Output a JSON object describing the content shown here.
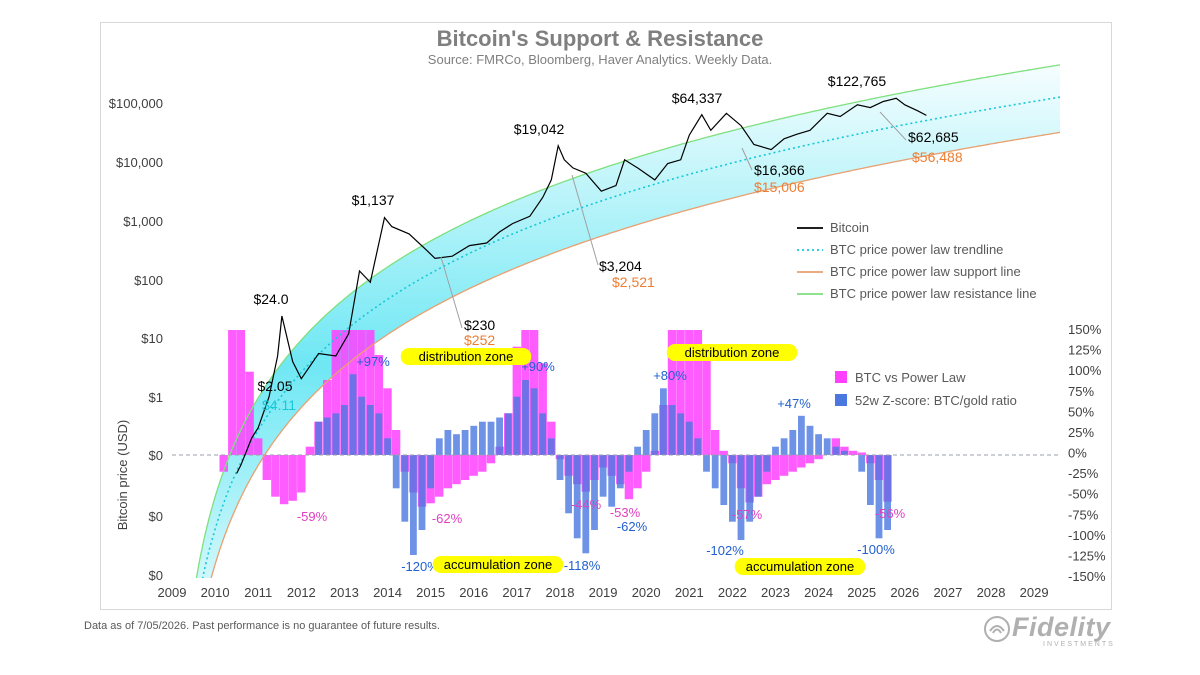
{
  "page": {
    "title": "Bitcoin's Support & Resistance",
    "subtitle": "Source: FMRCo, Bloomberg, Haver Analytics. Weekly Data.",
    "footnote": "Data as of 7/05/2026. Past performance is no guarantee of future results.",
    "logo_text": "Fidelity",
    "logo_subtext": "INVESTMENTS"
  },
  "colors": {
    "bitcoin": "#000000",
    "trendline": "#17c8d8",
    "support": "#e8a070",
    "resistance": "#7ee07e",
    "band": "#3fe0f0",
    "btc_vs_power_law": "#ff40ff",
    "zscore": "#4a78e0",
    "price_label": "#000000",
    "support_label": "#ed7d31",
    "pct_pink": "#e040c0",
    "pct_blue": "#2060d0",
    "zone_highlight": "#ffff00"
  },
  "chart_data": {
    "type": "line",
    "ylabel_left": "Bitcoin price (USD)",
    "y_scale_left": "log",
    "y_ticks_left": [
      "$0",
      "$0",
      "$0",
      "$1",
      "$10",
      "$100",
      "$1,000",
      "$10,000",
      "$100,000"
    ],
    "y_ticks_right": [
      "150%",
      "125%",
      "100%",
      "75%",
      "50%",
      "25%",
      "0%",
      "-25%",
      "-50%",
      "-75%",
      "-100%",
      "-125%",
      "-150%"
    ],
    "x_ticks": [
      "2009",
      "2010",
      "2011",
      "2012",
      "2013",
      "2014",
      "2015",
      "2016",
      "2017",
      "2018",
      "2019",
      "2020",
      "2021",
      "2022",
      "2023",
      "2024",
      "2025",
      "2026",
      "2027",
      "2028",
      "2029"
    ],
    "grid": false,
    "legend_upper": {
      "placement": "right",
      "entries": [
        "Bitcoin",
        "BTC price power law trendline",
        "BTC price power law support line",
        "BTC price power law resistance line"
      ]
    },
    "legend_lower": {
      "placement": "right",
      "entries": [
        "BTC vs Power Law",
        "52w Z-score: BTC/gold ratio"
      ]
    },
    "series": [
      {
        "name": "Bitcoin",
        "x": [
          2010.5,
          2010.6,
          2010.85,
          2011.0,
          2011.25,
          2011.45,
          2011.55,
          2011.8,
          2012.0,
          2012.4,
          2012.8,
          2013.1,
          2013.35,
          2013.6,
          2013.93,
          2014.1,
          2014.5,
          2014.9,
          2015.1,
          2015.5,
          2015.9,
          2016.3,
          2016.6,
          2016.9,
          2017.3,
          2017.6,
          2017.8,
          2017.96,
          2018.1,
          2018.3,
          2018.6,
          2018.96,
          2019.3,
          2019.5,
          2019.8,
          2020.2,
          2020.5,
          2020.8,
          2021.0,
          2021.29,
          2021.5,
          2021.86,
          2022.2,
          2022.5,
          2022.9,
          2023.2,
          2023.5,
          2023.8,
          2024.2,
          2024.5,
          2024.9,
          2025.2,
          2025.5,
          2025.8,
          2026.0,
          2026.3,
          2026.5
        ],
        "y": [
          0.05,
          0.07,
          0.2,
          0.3,
          1.0,
          5.0,
          24.0,
          4.0,
          2.05,
          5.5,
          5.0,
          12.0,
          140.0,
          90.0,
          1137.0,
          800.0,
          600.0,
          320.0,
          230.0,
          250.0,
          380.0,
          420.0,
          650.0,
          900.0,
          1200.0,
          2500.0,
          5000.0,
          19042.0,
          11000.0,
          8000.0,
          6500.0,
          3204.0,
          4000.0,
          11000.0,
          8000.0,
          5000.0,
          9500.0,
          11000.0,
          29000.0,
          64337.0,
          35000.0,
          68000.0,
          42000.0,
          20000.0,
          16366.0,
          25000.0,
          30000.0,
          35000.0,
          68000.0,
          60000.0,
          95000.0,
          85000.0,
          108000.0,
          122765.0,
          95000.0,
          75000.0,
          62685.0
        ]
      },
      {
        "name": "BTC price power law trendline",
        "style": "dotted"
      },
      {
        "name": "BTC price power law support line"
      },
      {
        "name": "BTC price power law resistance line"
      },
      {
        "name": "BTC vs Power Law",
        "type": "bar",
        "unit": "%",
        "x": [
          2010.2,
          2010.4,
          2010.6,
          2010.8,
          2011.0,
          2011.2,
          2011.4,
          2011.6,
          2011.8,
          2012.0,
          2012.2,
          2012.4,
          2012.6,
          2012.8,
          2013.0,
          2013.2,
          2013.4,
          2013.6,
          2013.8,
          2014.0,
          2014.2,
          2014.4,
          2014.6,
          2014.8,
          2015.0,
          2015.2,
          2015.4,
          2015.6,
          2015.8,
          2016.0,
          2016.2,
          2016.4,
          2016.6,
          2016.8,
          2017.0,
          2017.2,
          2017.4,
          2017.6,
          2017.8,
          2018.0,
          2018.2,
          2018.4,
          2018.6,
          2018.8,
          2019.0,
          2019.2,
          2019.4,
          2019.6,
          2019.8,
          2020.0,
          2020.2,
          2020.4,
          2020.6,
          2020.8,
          2021.0,
          2021.2,
          2021.4,
          2021.6,
          2021.8,
          2022.0,
          2022.2,
          2022.4,
          2022.6,
          2022.8,
          2023.0,
          2023.2,
          2023.4,
          2023.6,
          2023.8,
          2024.0,
          2024.2,
          2024.4,
          2024.6,
          2024.8,
          2025.0,
          2025.2,
          2025.4,
          2025.6
        ],
        "y": [
          -20,
          150,
          150,
          100,
          20,
          -30,
          -50,
          -59,
          -55,
          -45,
          10,
          40,
          90,
          150,
          150,
          150,
          150,
          150,
          120,
          80,
          30,
          -20,
          -45,
          -62,
          -58,
          -50,
          -40,
          -35,
          -30,
          -25,
          -20,
          -10,
          10,
          50,
          130,
          150,
          150,
          110,
          40,
          -5,
          -25,
          -35,
          -44,
          -30,
          -15,
          -25,
          -35,
          -53,
          -40,
          -20,
          5,
          60,
          150,
          150,
          150,
          150,
          120,
          30,
          5,
          -10,
          -40,
          -57,
          -50,
          -35,
          -30,
          -25,
          -20,
          -15,
          -10,
          -5,
          0,
          20,
          10,
          5,
          3,
          -10,
          -30,
          -56
        ]
      },
      {
        "name": "52w Z-score: BTC/gold ratio",
        "type": "bar",
        "unit": "%",
        "x": [
          2010.2,
          2010.4,
          2010.6,
          2010.8,
          2011.0,
          2011.2,
          2011.4,
          2011.6,
          2011.8,
          2012.0,
          2012.2,
          2012.4,
          2012.6,
          2012.8,
          2013.0,
          2013.2,
          2013.4,
          2013.6,
          2013.8,
          2014.0,
          2014.2,
          2014.4,
          2014.6,
          2014.8,
          2015.0,
          2015.2,
          2015.4,
          2015.6,
          2015.8,
          2016.0,
          2016.2,
          2016.4,
          2016.6,
          2016.8,
          2017.0,
          2017.2,
          2017.4,
          2017.6,
          2017.8,
          2018.0,
          2018.2,
          2018.4,
          2018.6,
          2018.8,
          2019.0,
          2019.2,
          2019.4,
          2019.6,
          2019.8,
          2020.0,
          2020.2,
          2020.4,
          2020.6,
          2020.8,
          2021.0,
          2021.2,
          2021.4,
          2021.6,
          2021.8,
          2022.0,
          2022.2,
          2022.4,
          2022.6,
          2022.8,
          2023.0,
          2023.2,
          2023.4,
          2023.6,
          2023.8,
          2024.0,
          2024.2,
          2024.4,
          2024.6,
          2024.8,
          2025.0,
          2025.2,
          2025.4,
          2025.6
        ],
        "y": [
          0,
          0,
          0,
          0,
          0,
          0,
          0,
          0,
          0,
          0,
          0,
          40,
          45,
          50,
          60,
          97,
          70,
          60,
          50,
          20,
          -40,
          -80,
          -120,
          -90,
          -40,
          20,
          30,
          25,
          30,
          35,
          40,
          40,
          45,
          50,
          70,
          90,
          80,
          50,
          20,
          -30,
          -70,
          -100,
          -118,
          -90,
          -50,
          -62,
          -40,
          -20,
          10,
          30,
          50,
          80,
          60,
          50,
          40,
          20,
          -20,
          -40,
          -60,
          -80,
          -102,
          -80,
          -50,
          -20,
          10,
          20,
          30,
          47,
          35,
          25,
          20,
          10,
          5,
          0,
          -20,
          -60,
          -100,
          -90
        ]
      }
    ],
    "price_annotations": [
      {
        "x": 2011.55,
        "text": "$24.0",
        "color": "price"
      },
      {
        "x": 2013.93,
        "text": "$1,137",
        "color": "price"
      },
      {
        "x": 2017.96,
        "text": "$19,042",
        "color": "price"
      },
      {
        "x": 2021.29,
        "text": "$64,337",
        "color": "price"
      },
      {
        "x": 2025.8,
        "text": "$122,765",
        "color": "price"
      },
      {
        "x": 2012.0,
        "text": "$2.05",
        "color": "price"
      },
      {
        "x": 2012.0,
        "text": "$4.11",
        "color": "trend"
      },
      {
        "x": 2015.1,
        "text": "$230",
        "color": "price"
      },
      {
        "x": 2015.1,
        "text": "$252",
        "color": "support"
      },
      {
        "x": 2018.96,
        "text": "$3,204",
        "color": "price"
      },
      {
        "x": 2018.96,
        "text": "$2,521",
        "color": "support"
      },
      {
        "x": 2022.9,
        "text": "$16,366",
        "color": "price"
      },
      {
        "x": 2022.9,
        "text": "$15,006",
        "color": "support"
      },
      {
        "x": 2026.5,
        "text": "$62,685",
        "color": "price"
      },
      {
        "x": 2026.5,
        "text": "$56,488",
        "color": "support"
      }
    ],
    "pct_annotations": [
      {
        "text": "+97%",
        "color": "blue"
      },
      {
        "text": "+90%",
        "color": "blue"
      },
      {
        "text": "+80%",
        "color": "blue"
      },
      {
        "text": "+47%",
        "color": "blue"
      },
      {
        "text": "-59%",
        "color": "pink"
      },
      {
        "text": "-62%",
        "color": "pink"
      },
      {
        "text": "-44%",
        "color": "pink"
      },
      {
        "text": "-53%",
        "color": "pink"
      },
      {
        "text": "-57%",
        "color": "pink"
      },
      {
        "text": "-56%",
        "color": "pink"
      },
      {
        "text": "-120%",
        "color": "blue"
      },
      {
        "text": "-118%",
        "color": "blue"
      },
      {
        "text": "-62%",
        "color": "blue"
      },
      {
        "text": "-102%",
        "color": "blue"
      },
      {
        "text": "-100%",
        "color": "blue"
      }
    ],
    "zone_annotations": [
      {
        "text": "distribution zone"
      },
      {
        "text": "distribution zone"
      },
      {
        "text": "accumulation zone"
      },
      {
        "text": "accumulation zone"
      }
    ]
  }
}
